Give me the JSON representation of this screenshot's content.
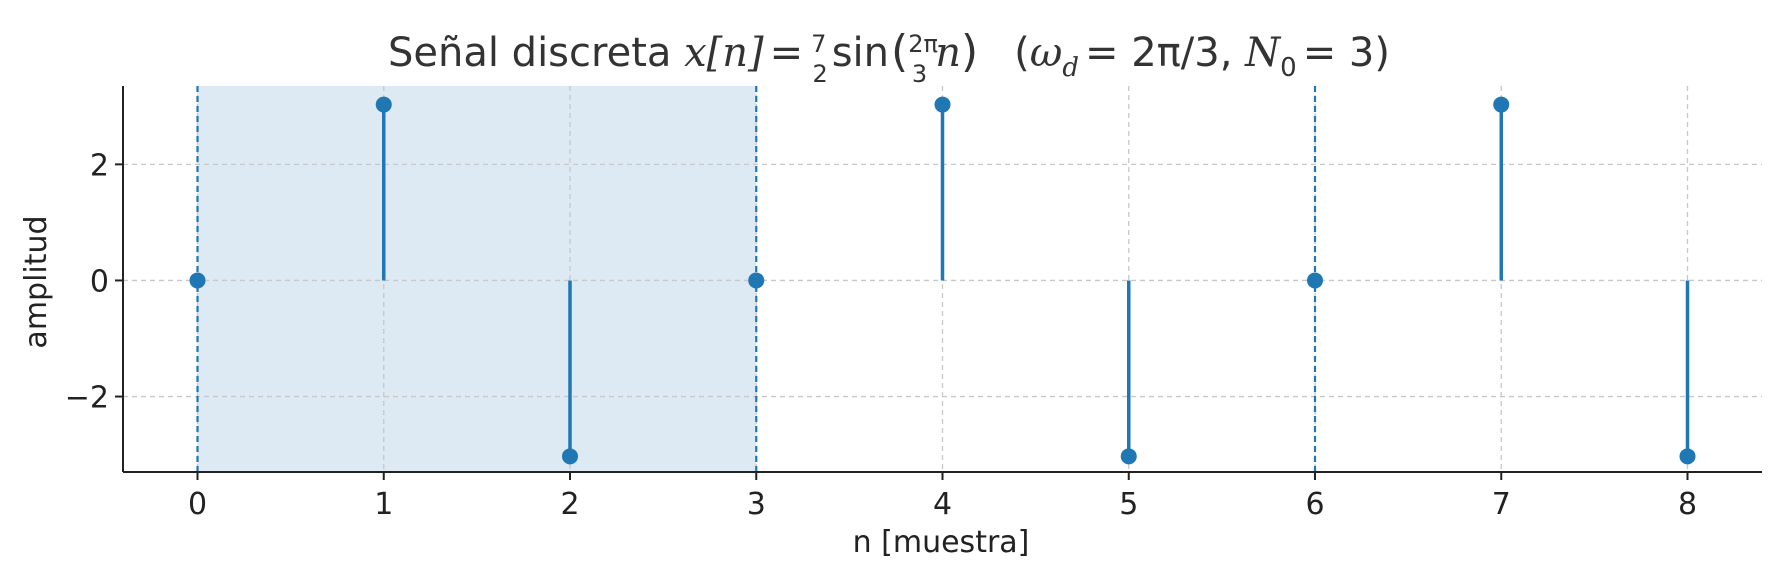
{
  "chart_data": {
    "type": "stem",
    "title": {
      "prefix": "Señal discreta ",
      "lhs": "x[n]",
      "eq": "=",
      "frac1_num": "7",
      "frac1_den": "2",
      "func": "sin",
      "frac2_num": "2π",
      "frac2_den": "3",
      "arg": "n",
      "params_open": "(",
      "omega": "ω",
      "omega_sub": "d",
      "omega_val": "= 2π/3, ",
      "N": "N",
      "N_sub": "0",
      "N_val": "= 3)"
    },
    "xlabel": "n [muestra]",
    "ylabel": "amplitud",
    "x": [
      0,
      1,
      2,
      3,
      4,
      5,
      6,
      7,
      8
    ],
    "y": [
      0,
      3.03,
      -3.03,
      0,
      3.03,
      -3.03,
      0,
      3.03,
      -3.03
    ],
    "xlim": [
      -0.4,
      8.4
    ],
    "ylim": [
      -3.3,
      3.35
    ],
    "xticks": [
      0,
      1,
      2,
      3,
      4,
      5,
      6,
      7,
      8
    ],
    "yticks": [
      2,
      0,
      -2
    ],
    "ytick_labels": [
      "2",
      "0",
      "−2"
    ],
    "shaded_period": [
      0,
      3
    ],
    "period_markers": [
      0,
      3,
      6
    ],
    "grid": true,
    "colors": {
      "stem": "#1f77b4",
      "shade": "#dde9f3",
      "grid": "#c8c8c8",
      "axis": "#222222"
    }
  }
}
